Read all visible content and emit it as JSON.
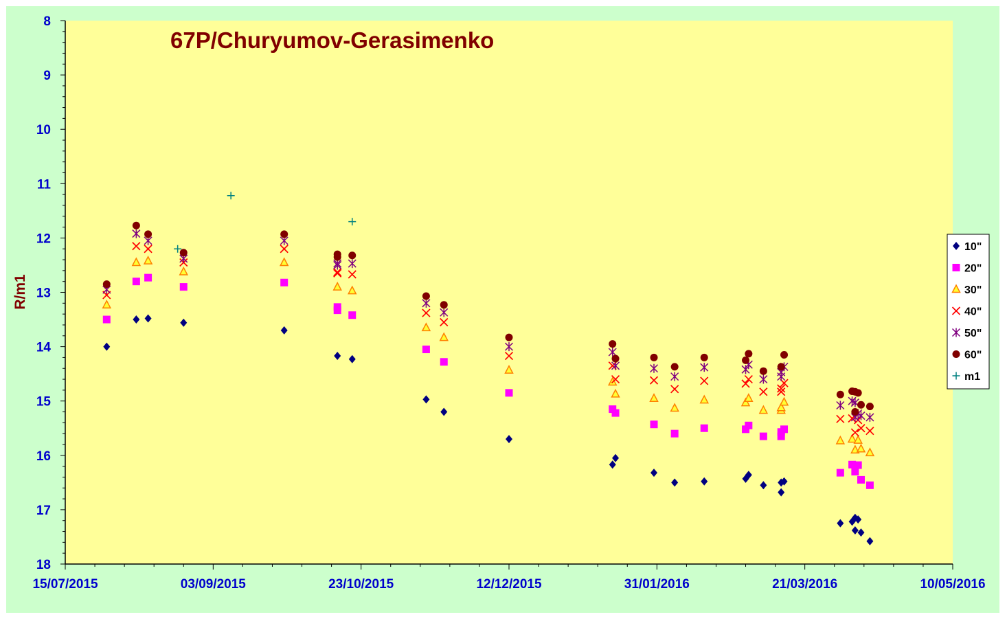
{
  "chart_data": {
    "type": "scatter",
    "title": "67P/Churyumov-Gerasimenko",
    "xlabel": "",
    "ylabel": "R/m1",
    "ylim": [
      8,
      18
    ],
    "y_inverted": true,
    "xlim": [
      "2015-07-15",
      "2016-05-10"
    ],
    "x_ticks": [
      "15/07/2015",
      "03/09/2015",
      "23/10/2015",
      "12/12/2015",
      "31/01/2016",
      "21/03/2016",
      "10/05/2016"
    ],
    "y_ticks": [
      "8",
      "9",
      "10",
      "11",
      "12",
      "13",
      "14",
      "15",
      "16",
      "17",
      "18"
    ],
    "grid": false,
    "legend_position": "right",
    "colors": {
      "page_background": "#ccffcc",
      "plot_background": "#ffff99",
      "axis_labels": "#0000cc",
      "title": "#800000"
    },
    "series": [
      {
        "name": "10\"",
        "marker": "diamond",
        "color": "#000080",
        "points": [
          [
            "2015-07-29",
            14.0
          ],
          [
            "2015-08-08",
            13.5
          ],
          [
            "2015-08-12",
            13.48
          ],
          [
            "2015-08-24",
            13.56
          ],
          [
            "2015-09-27",
            13.7
          ],
          [
            "2015-10-15",
            14.17
          ],
          [
            "2015-10-20",
            14.23
          ],
          [
            "2015-11-14",
            14.97
          ],
          [
            "2015-11-20",
            15.2
          ],
          [
            "2015-12-12",
            15.7
          ],
          [
            "2016-01-16",
            16.17
          ],
          [
            "2016-01-17",
            16.05
          ],
          [
            "2016-01-30",
            16.32
          ],
          [
            "2016-02-06",
            16.5
          ],
          [
            "2016-02-16",
            16.48
          ],
          [
            "2016-03-01",
            16.43
          ],
          [
            "2016-03-02",
            16.36
          ],
          [
            "2016-03-07",
            16.55
          ],
          [
            "2016-03-13",
            16.68
          ],
          [
            "2016-03-13",
            16.5
          ],
          [
            "2016-03-14",
            16.48
          ],
          [
            "2016-04-02",
            17.25
          ],
          [
            "2016-04-06",
            17.22
          ],
          [
            "2016-04-07",
            17.15
          ],
          [
            "2016-04-07",
            17.38
          ],
          [
            "2016-04-08",
            17.18
          ],
          [
            "2016-04-09",
            17.42
          ],
          [
            "2016-04-12",
            17.58
          ]
        ]
      },
      {
        "name": "20\"",
        "marker": "square",
        "color": "#ff00ff",
        "points": [
          [
            "2015-07-29",
            13.5
          ],
          [
            "2015-08-08",
            12.8
          ],
          [
            "2015-08-12",
            12.73
          ],
          [
            "2015-08-24",
            12.9
          ],
          [
            "2015-09-27",
            12.82
          ],
          [
            "2015-10-15",
            13.27
          ],
          [
            "2015-10-15",
            13.33
          ],
          [
            "2015-10-20",
            13.42
          ],
          [
            "2015-11-14",
            14.05
          ],
          [
            "2015-11-20",
            14.28
          ],
          [
            "2015-12-12",
            14.85
          ],
          [
            "2016-01-16",
            15.15
          ],
          [
            "2016-01-17",
            15.22
          ],
          [
            "2016-01-30",
            15.43
          ],
          [
            "2016-02-06",
            15.6
          ],
          [
            "2016-02-16",
            15.5
          ],
          [
            "2016-03-01",
            15.52
          ],
          [
            "2016-03-02",
            15.45
          ],
          [
            "2016-03-07",
            15.65
          ],
          [
            "2016-03-13",
            15.65
          ],
          [
            "2016-03-13",
            15.57
          ],
          [
            "2016-03-14",
            15.52
          ],
          [
            "2016-04-02",
            16.32
          ],
          [
            "2016-04-06",
            16.17
          ],
          [
            "2016-04-07",
            16.3
          ],
          [
            "2016-04-08",
            16.18
          ],
          [
            "2016-04-09",
            16.45
          ],
          [
            "2016-04-12",
            16.55
          ]
        ]
      },
      {
        "name": "30\"",
        "marker": "triangle",
        "color": "#ff8000",
        "points": [
          [
            "2015-07-29",
            13.23
          ],
          [
            "2015-08-08",
            12.45
          ],
          [
            "2015-08-12",
            12.42
          ],
          [
            "2015-08-24",
            12.62
          ],
          [
            "2015-09-27",
            12.45
          ],
          [
            "2015-10-15",
            12.9
          ],
          [
            "2015-10-20",
            12.97
          ],
          [
            "2015-11-14",
            13.65
          ],
          [
            "2015-11-20",
            13.83
          ],
          [
            "2015-12-12",
            14.43
          ],
          [
            "2016-01-16",
            14.65
          ],
          [
            "2016-01-17",
            14.87
          ],
          [
            "2016-01-30",
            14.95
          ],
          [
            "2016-02-06",
            15.13
          ],
          [
            "2016-02-16",
            14.98
          ],
          [
            "2016-03-01",
            15.03
          ],
          [
            "2016-03-02",
            14.95
          ],
          [
            "2016-03-07",
            15.17
          ],
          [
            "2016-03-13",
            15.17
          ],
          [
            "2016-03-13",
            15.12
          ],
          [
            "2016-03-14",
            15.02
          ],
          [
            "2016-04-02",
            15.73
          ],
          [
            "2016-04-06",
            15.7
          ],
          [
            "2016-04-07",
            15.9
          ],
          [
            "2016-04-08",
            15.72
          ],
          [
            "2016-04-09",
            15.88
          ],
          [
            "2016-04-12",
            15.95
          ]
        ]
      },
      {
        "name": "40\"",
        "marker": "x",
        "color": "#ff0000",
        "points": [
          [
            "2015-07-29",
            13.05
          ],
          [
            "2015-08-08",
            12.15
          ],
          [
            "2015-08-12",
            12.2
          ],
          [
            "2015-08-24",
            12.45
          ],
          [
            "2015-09-27",
            12.2
          ],
          [
            "2015-10-15",
            12.63
          ],
          [
            "2015-10-15",
            12.65
          ],
          [
            "2015-10-20",
            12.67
          ],
          [
            "2015-11-14",
            13.38
          ],
          [
            "2015-11-20",
            13.55
          ],
          [
            "2015-12-12",
            14.17
          ],
          [
            "2016-01-16",
            14.35
          ],
          [
            "2016-01-17",
            14.6
          ],
          [
            "2016-01-30",
            14.62
          ],
          [
            "2016-02-06",
            14.78
          ],
          [
            "2016-02-16",
            14.63
          ],
          [
            "2016-03-01",
            14.68
          ],
          [
            "2016-03-02",
            14.6
          ],
          [
            "2016-03-07",
            14.83
          ],
          [
            "2016-03-13",
            14.83
          ],
          [
            "2016-03-13",
            14.77
          ],
          [
            "2016-03-14",
            14.67
          ],
          [
            "2016-04-02",
            15.33
          ],
          [
            "2016-04-06",
            15.32
          ],
          [
            "2016-04-07",
            15.58
          ],
          [
            "2016-04-08",
            15.35
          ],
          [
            "2016-04-09",
            15.5
          ],
          [
            "2016-04-12",
            15.55
          ]
        ]
      },
      {
        "name": "50\"",
        "marker": "star",
        "color": "#800080",
        "points": [
          [
            "2015-07-29",
            12.95
          ],
          [
            "2015-08-08",
            11.92
          ],
          [
            "2015-08-12",
            12.05
          ],
          [
            "2015-08-24",
            12.38
          ],
          [
            "2015-09-27",
            12.05
          ],
          [
            "2015-10-15",
            12.47
          ],
          [
            "2015-10-15",
            12.5
          ],
          [
            "2015-10-20",
            12.47
          ],
          [
            "2015-11-14",
            13.2
          ],
          [
            "2015-11-20",
            13.37
          ],
          [
            "2015-12-12",
            14.0
          ],
          [
            "2016-01-16",
            14.1
          ],
          [
            "2016-01-17",
            14.35
          ],
          [
            "2016-01-30",
            14.4
          ],
          [
            "2016-02-06",
            14.55
          ],
          [
            "2016-02-16",
            14.38
          ],
          [
            "2016-03-01",
            14.42
          ],
          [
            "2016-03-02",
            14.33
          ],
          [
            "2016-03-07",
            14.6
          ],
          [
            "2016-03-13",
            14.55
          ],
          [
            "2016-03-13",
            14.47
          ],
          [
            "2016-03-14",
            14.37
          ],
          [
            "2016-04-02",
            15.08
          ],
          [
            "2016-04-06",
            15.0
          ],
          [
            "2016-04-07",
            15.3
          ],
          [
            "2016-04-07",
            15.03
          ],
          [
            "2016-04-08",
            15.23
          ],
          [
            "2016-04-09",
            15.27
          ],
          [
            "2016-04-12",
            15.3
          ]
        ]
      },
      {
        "name": "60\"",
        "marker": "circle",
        "color": "#800000",
        "points": [
          [
            "2015-07-29",
            12.85
          ],
          [
            "2015-08-08",
            11.77
          ],
          [
            "2015-08-12",
            11.93
          ],
          [
            "2015-08-24",
            12.27
          ],
          [
            "2015-09-27",
            11.93
          ],
          [
            "2015-10-15",
            12.3
          ],
          [
            "2015-10-15",
            12.35
          ],
          [
            "2015-10-20",
            12.32
          ],
          [
            "2015-11-14",
            13.07
          ],
          [
            "2015-11-20",
            13.23
          ],
          [
            "2015-12-12",
            13.83
          ],
          [
            "2016-01-16",
            13.95
          ],
          [
            "2016-01-17",
            14.22
          ],
          [
            "2016-01-30",
            14.2
          ],
          [
            "2016-02-06",
            14.37
          ],
          [
            "2016-02-16",
            14.2
          ],
          [
            "2016-03-01",
            14.25
          ],
          [
            "2016-03-02",
            14.13
          ],
          [
            "2016-03-07",
            14.45
          ],
          [
            "2016-03-13",
            14.37
          ],
          [
            "2016-03-14",
            14.15
          ],
          [
            "2016-04-02",
            14.88
          ],
          [
            "2016-04-06",
            14.82
          ],
          [
            "2016-04-07",
            15.2
          ],
          [
            "2016-04-07",
            14.83
          ],
          [
            "2016-04-08",
            14.85
          ],
          [
            "2016-04-09",
            15.07
          ],
          [
            "2016-04-12",
            15.1
          ]
        ]
      },
      {
        "name": "m1",
        "marker": "plus",
        "color": "#008080",
        "points": [
          [
            "2015-08-22",
            12.2
          ],
          [
            "2015-09-09",
            11.22
          ],
          [
            "2015-10-20",
            11.7
          ]
        ]
      }
    ]
  }
}
